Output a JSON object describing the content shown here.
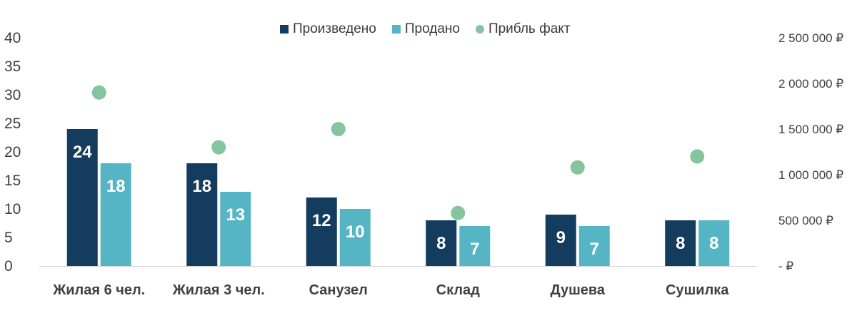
{
  "chart_data": {
    "type": "bar",
    "categories": [
      "Жилая 6 чел.",
      "Жилая 3 чел.",
      "Санузел",
      "Склад",
      "Душева",
      "Сушилка"
    ],
    "series": [
      {
        "name": "Произведено",
        "axis": "left",
        "kind": "bar",
        "color": "#133c5f",
        "values": [
          24,
          18,
          12,
          8,
          9,
          8
        ]
      },
      {
        "name": "Продано",
        "axis": "left",
        "kind": "bar",
        "color": "#56b5c4",
        "values": [
          18,
          13,
          10,
          7,
          7,
          8
        ]
      },
      {
        "name": "Прибль факт",
        "axis": "right",
        "kind": "scatter",
        "color": "#84c49e",
        "values": [
          1900000,
          1300000,
          1500000,
          580000,
          1080000,
          1200000
        ]
      }
    ],
    "y_left": {
      "ylim": [
        0,
        40
      ],
      "ticks": [
        0,
        5,
        10,
        15,
        20,
        25,
        30,
        35,
        40
      ]
    },
    "y_right": {
      "ylim": [
        0,
        2500000
      ],
      "ticks": [
        0,
        500000,
        1000000,
        1500000,
        2000000,
        2500000
      ],
      "tick_labels": [
        "- ₽",
        "500 000 ₽",
        "1 000 000 ₽",
        "1 500 000 ₽",
        "2 000 000 ₽",
        "2 500 000 ₽"
      ]
    },
    "legend_position": "top-center",
    "grid": false
  }
}
